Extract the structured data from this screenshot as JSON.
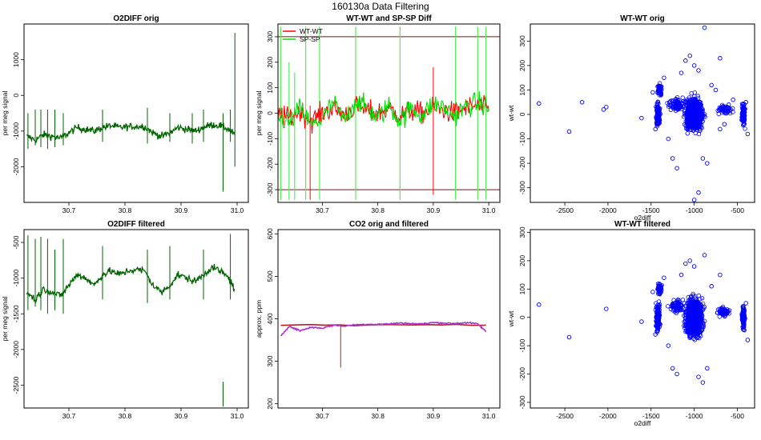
{
  "page_title": "160130a   Data Filtering",
  "chart_data": [
    {
      "id": "o2diff-orig",
      "type": "line",
      "title": "O2DIFF orig",
      "xlabel": "",
      "ylabel": "per meg signal",
      "xlim": [
        30.62,
        31.02
      ],
      "ylim": [
        -3000,
        2000
      ],
      "xticks": [
        30.7,
        30.8,
        30.9,
        31.0
      ],
      "xtick_labels": [
        "30.7",
        "30.8",
        "30.9",
        "31.0"
      ],
      "yticks": [
        -2000,
        -1000,
        0,
        1000
      ],
      "ytick_labels": [
        "-2000",
        "-1000",
        "0",
        "1000"
      ],
      "grid": false,
      "series": [
        {
          "color": "#006400",
          "x": [
            30.625,
            30.64,
            30.655,
            30.67,
            30.685,
            30.7,
            30.715,
            30.73,
            30.745,
            30.76,
            30.775,
            30.79,
            30.805,
            30.82,
            30.835,
            30.85,
            30.865,
            30.88,
            30.895,
            30.91,
            30.925,
            30.94,
            30.955,
            30.97,
            30.985,
            30.995
          ],
          "y": [
            -1150,
            -1250,
            -1100,
            -1150,
            -1200,
            -1050,
            -900,
            -950,
            -1000,
            -900,
            -850,
            -900,
            -880,
            -870,
            -880,
            -1050,
            -1150,
            -1050,
            -900,
            -950,
            -1000,
            -900,
            -820,
            -850,
            -950,
            -1100
          ]
        }
      ],
      "spikes": [
        {
          "x": 30.627,
          "y0": -1500,
          "y1": -500
        },
        {
          "x": 30.64,
          "y0": -1400,
          "y1": -400
        },
        {
          "x": 30.65,
          "y0": -1450,
          "y1": -400
        },
        {
          "x": 30.662,
          "y0": -1500,
          "y1": -400
        },
        {
          "x": 30.675,
          "y0": -1450,
          "y1": -400
        },
        {
          "x": 30.69,
          "y0": -1400,
          "y1": -500
        },
        {
          "x": 30.76,
          "y0": -1300,
          "y1": -400
        },
        {
          "x": 30.84,
          "y0": -1350,
          "y1": -350
        },
        {
          "x": 30.88,
          "y0": -1300,
          "y1": -500
        },
        {
          "x": 30.92,
          "y0": -1350,
          "y1": -500
        },
        {
          "x": 30.94,
          "y0": -1300,
          "y1": -400
        },
        {
          "x": 30.975,
          "y0": -2700,
          "y1": -500
        },
        {
          "x": 30.988,
          "y0": -1300,
          "y1": -400
        },
        {
          "x": 30.996,
          "y0": -2000,
          "y1": 1750
        }
      ]
    },
    {
      "id": "wt-sp-diff",
      "type": "line",
      "title": "WT-WT and SP-SP Diff",
      "xlabel": "",
      "ylabel": "per meg signal",
      "xlim": [
        30.62,
        31.02
      ],
      "ylim": [
        -350,
        350
      ],
      "xticks": [
        30.7,
        30.8,
        30.9,
        31.0
      ],
      "xtick_labels": [
        "30.7",
        "30.8",
        "30.9",
        "31.0"
      ],
      "yticks": [
        -300,
        -200,
        -100,
        0,
        100,
        200,
        300
      ],
      "ytick_labels": [
        "-300",
        "-200",
        "-100",
        "0",
        "100",
        "200",
        "300"
      ],
      "grid": false,
      "legend": {
        "position": "top-left",
        "entries": [
          "WT-WT",
          "SP-SP"
        ]
      },
      "hlines": [
        300,
        -300
      ],
      "series": [
        {
          "name": "WT-WT",
          "color": "#ff0000",
          "x": [
            30.62,
            30.64,
            30.66,
            30.68,
            30.7,
            30.72,
            30.74,
            30.76,
            30.78,
            30.8,
            30.82,
            30.84,
            30.86,
            30.88,
            30.9,
            30.92,
            30.94,
            30.96,
            30.98,
            31.0
          ],
          "y": [
            0,
            -20,
            10,
            -30,
            0,
            20,
            -10,
            30,
            10,
            0,
            20,
            -10,
            10,
            0,
            20,
            10,
            0,
            20,
            30,
            10
          ]
        },
        {
          "name": "SP-SP",
          "color": "#00dd00",
          "x": [
            30.62,
            30.64,
            30.66,
            30.68,
            30.7,
            30.72,
            30.74,
            30.76,
            30.78,
            30.8,
            30.82,
            30.84,
            30.86,
            30.88,
            30.9,
            30.92,
            30.94,
            30.96,
            30.98,
            31.0
          ],
          "y": [
            -10,
            -40,
            20,
            -50,
            -20,
            40,
            -30,
            50,
            20,
            -20,
            30,
            -30,
            20,
            -10,
            40,
            20,
            -10,
            30,
            40,
            20
          ]
        }
      ],
      "spikes": [
        {
          "x": 30.625,
          "y0": -340,
          "y1": 340,
          "series": "SP-SP"
        },
        {
          "x": 30.64,
          "y0": -340,
          "y1": 200,
          "series": "SP-SP"
        },
        {
          "x": 30.65,
          "y0": -340,
          "y1": 160,
          "series": "SP-SP"
        },
        {
          "x": 30.67,
          "y0": -340,
          "y1": 340,
          "series": "SP-SP"
        },
        {
          "x": 30.695,
          "y0": -340,
          "y1": 340,
          "series": "SP-SP"
        },
        {
          "x": 30.76,
          "y0": -340,
          "y1": 340,
          "series": "SP-SP"
        },
        {
          "x": 30.84,
          "y0": -340,
          "y1": 340,
          "series": "SP-SP"
        },
        {
          "x": 30.94,
          "y0": -340,
          "y1": 340,
          "series": "SP-SP"
        },
        {
          "x": 30.98,
          "y0": -340,
          "y1": 340,
          "series": "SP-SP"
        },
        {
          "x": 30.995,
          "y0": -340,
          "y1": 340,
          "series": "SP-SP"
        },
        {
          "x": 30.62,
          "y0": -200,
          "y1": 260,
          "series": "WT-WT"
        },
        {
          "x": 30.678,
          "y0": -340,
          "y1": 30,
          "series": "WT-WT"
        },
        {
          "x": 30.9,
          "y0": -320,
          "y1": 180,
          "series": "WT-WT"
        }
      ]
    },
    {
      "id": "wtwt-orig",
      "type": "scatter",
      "title": "WT-WT orig",
      "xlabel": "o2diff",
      "ylabel": "wt-wt",
      "xlim": [
        -2900,
        -300
      ],
      "ylim": [
        -360,
        370
      ],
      "xticks": [
        -2500,
        -2000,
        -1500,
        -1000,
        -500
      ],
      "xtick_labels": [
        "-2500",
        "-2000",
        "-1500",
        "-1000",
        "-500"
      ],
      "yticks": [
        -300,
        -200,
        -100,
        0,
        100,
        200,
        300
      ],
      "ytick_labels": [
        "-300",
        "-200",
        "-100",
        "0",
        "100",
        "200",
        "300"
      ],
      "grid": false,
      "marker_color": "#0000ff",
      "points": [
        [
          -2800,
          45
        ],
        [
          -2450,
          -70
        ],
        [
          -2300,
          50
        ],
        [
          -2050,
          20
        ],
        [
          -2020,
          30
        ],
        [
          -1610,
          -15
        ],
        [
          -1000,
          -350
        ],
        [
          -950,
          -320
        ],
        [
          -880,
          355
        ],
        [
          -700,
          230
        ],
        [
          -1350,
          150
        ],
        [
          -1300,
          -100
        ],
        [
          -1250,
          -180
        ],
        [
          -1200,
          -220
        ],
        [
          -1150,
          170
        ],
        [
          -1100,
          220
        ],
        [
          -1050,
          240
        ],
        [
          -1000,
          200
        ],
        [
          -950,
          180
        ],
        [
          -900,
          -180
        ],
        [
          -850,
          -200
        ],
        [
          -800,
          120
        ],
        [
          -750,
          100
        ],
        [
          -700,
          -60
        ],
        [
          -650,
          -40
        ],
        [
          -600,
          40
        ],
        [
          -550,
          60
        ],
        [
          -400,
          50
        ],
        [
          -380,
          -80
        ],
        [
          -1450,
          -60
        ],
        [
          -1480,
          90
        ]
      ],
      "clusters": [
        {
          "cx": -1000,
          "cy": 0,
          "rx": 160,
          "ry": 110,
          "n": 900
        },
        {
          "cx": -1420,
          "cy": 0,
          "rx": 40,
          "ry": 80,
          "n": 120
        },
        {
          "cx": -1400,
          "cy": 100,
          "rx": 40,
          "ry": 40,
          "n": 60
        },
        {
          "cx": -430,
          "cy": 0,
          "rx": 30,
          "ry": 70,
          "n": 100
        },
        {
          "cx": -650,
          "cy": 20,
          "rx": 120,
          "ry": 30,
          "n": 60
        },
        {
          "cx": -1200,
          "cy": 40,
          "rx": 150,
          "ry": 40,
          "n": 90
        }
      ]
    },
    {
      "id": "o2diff-filtered",
      "type": "line",
      "title": "O2DIFF filtered",
      "xlabel": "",
      "ylabel": "per meg signal",
      "xlim": [
        30.62,
        31.02
      ],
      "ylim": [
        -2820,
        -320
      ],
      "xticks": [
        30.7,
        30.8,
        30.9,
        31.0
      ],
      "xtick_labels": [
        "30.7",
        "30.8",
        "30.9",
        "31.0"
      ],
      "yticks": [
        -2500,
        -2000,
        -1500,
        -1000,
        -500
      ],
      "ytick_labels": [
        "-2500",
        "-2000",
        "-1500",
        "-1000",
        "-500"
      ],
      "grid": false,
      "series": [
        {
          "color": "#006400",
          "x": [
            30.625,
            30.64,
            30.655,
            30.67,
            30.685,
            30.7,
            30.715,
            30.73,
            30.745,
            30.76,
            30.775,
            30.79,
            30.805,
            30.82,
            30.835,
            30.85,
            30.865,
            30.88,
            30.895,
            30.91,
            30.925,
            30.94,
            30.955,
            30.97,
            30.985,
            30.995
          ],
          "y": [
            -1200,
            -1300,
            -1150,
            -1200,
            -1250,
            -1100,
            -950,
            -1000,
            -1100,
            -950,
            -900,
            -950,
            -900,
            -880,
            -900,
            -1100,
            -1200,
            -1100,
            -950,
            -1000,
            -1050,
            -950,
            -850,
            -900,
            -1000,
            -1150
          ]
        }
      ],
      "spikes": [
        {
          "x": 30.627,
          "y0": -1450,
          "y1": -400
        },
        {
          "x": 30.64,
          "y0": -1400,
          "y1": -450
        },
        {
          "x": 30.65,
          "y0": -1450,
          "y1": -420
        },
        {
          "x": 30.662,
          "y0": -1500,
          "y1": -450
        },
        {
          "x": 30.675,
          "y0": -1450,
          "y1": -600
        },
        {
          "x": 30.69,
          "y0": -1500,
          "y1": -450
        },
        {
          "x": 30.76,
          "y0": -1300,
          "y1": -550
        },
        {
          "x": 30.84,
          "y0": -1350,
          "y1": -600
        },
        {
          "x": 30.88,
          "y0": -1300,
          "y1": -550
        },
        {
          "x": 30.94,
          "y0": -1300,
          "y1": -600
        },
        {
          "x": 30.975,
          "y0": -2800,
          "y1": -2450
        },
        {
          "x": 30.988,
          "y0": -1300,
          "y1": -380
        }
      ]
    },
    {
      "id": "co2",
      "type": "line",
      "title": "CO2 orig and filtered",
      "xlabel": "",
      "ylabel": "approx. ppm",
      "xlim": [
        30.62,
        31.02
      ],
      "ylim": [
        190,
        610
      ],
      "xticks": [
        30.7,
        30.8,
        30.9,
        31.0
      ],
      "xtick_labels": [
        "30.7",
        "30.8",
        "30.9",
        "31.0"
      ],
      "yticks": [
        200,
        300,
        400,
        500,
        600
      ],
      "ytick_labels": [
        "200",
        "300",
        "400",
        "500",
        "600"
      ],
      "grid": false,
      "series": [
        {
          "name": "orig",
          "color": "#b22222",
          "x": [
            30.625,
            30.995
          ],
          "y": [
            385,
            385
          ]
        },
        {
          "name": "filtered",
          "color": "#aa33cc",
          "x": [
            30.625,
            30.64,
            30.66,
            30.68,
            30.7,
            30.72,
            30.74,
            30.76,
            30.78,
            30.8,
            30.82,
            30.84,
            30.86,
            30.88,
            30.9,
            30.92,
            30.94,
            30.96,
            30.98,
            30.995
          ],
          "y": [
            360,
            382,
            372,
            380,
            378,
            385,
            383,
            386,
            387,
            387,
            388,
            390,
            389,
            388,
            391,
            390,
            389,
            391,
            388,
            370
          ]
        }
      ],
      "spikes": [
        {
          "x": 30.733,
          "y0": 285,
          "y1": 385,
          "series": "orig"
        }
      ]
    },
    {
      "id": "wtwt-filtered",
      "type": "scatter",
      "title": "WT-WT filtered",
      "xlabel": "o2diff",
      "ylabel": "wt-wt",
      "xlim": [
        -2900,
        -300
      ],
      "ylim": [
        -320,
        310
      ],
      "xticks": [
        -2500,
        -2000,
        -1500,
        -1000,
        -500
      ],
      "xtick_labels": [
        "-2500",
        "-2000",
        "-1500",
        "-1000",
        "-500"
      ],
      "yticks": [
        -300,
        -200,
        -100,
        0,
        100,
        200,
        300
      ],
      "ytick_labels": [
        "-300",
        "-200",
        "-100",
        "0",
        "100",
        "200",
        "300"
      ],
      "grid": false,
      "marker_color": "#0000ff",
      "points": [
        [
          -2800,
          45
        ],
        [
          -2450,
          -70
        ],
        [
          -2020,
          30
        ],
        [
          -1610,
          -15
        ],
        [
          -880,
          220
        ],
        [
          -700,
          150
        ],
        [
          -950,
          -210
        ],
        [
          -900,
          -230
        ],
        [
          -1350,
          140
        ],
        [
          -1300,
          -100
        ],
        [
          -1250,
          -180
        ],
        [
          -1200,
          -200
        ],
        [
          -1150,
          150
        ],
        [
          -1100,
          190
        ],
        [
          -1050,
          200
        ],
        [
          -1000,
          180
        ],
        [
          -850,
          -180
        ],
        [
          -800,
          110
        ],
        [
          -400,
          50
        ],
        [
          -380,
          -80
        ],
        [
          -1450,
          -60
        ],
        [
          -1480,
          90
        ]
      ],
      "clusters": [
        {
          "cx": -1000,
          "cy": 0,
          "rx": 160,
          "ry": 110,
          "n": 900
        },
        {
          "cx": -1420,
          "cy": 0,
          "rx": 40,
          "ry": 80,
          "n": 120
        },
        {
          "cx": -1400,
          "cy": 100,
          "rx": 40,
          "ry": 40,
          "n": 60
        },
        {
          "cx": -430,
          "cy": 0,
          "rx": 30,
          "ry": 70,
          "n": 100
        },
        {
          "cx": -650,
          "cy": 20,
          "rx": 120,
          "ry": 30,
          "n": 60
        },
        {
          "cx": -1200,
          "cy": 40,
          "rx": 150,
          "ry": 40,
          "n": 90
        }
      ]
    }
  ]
}
